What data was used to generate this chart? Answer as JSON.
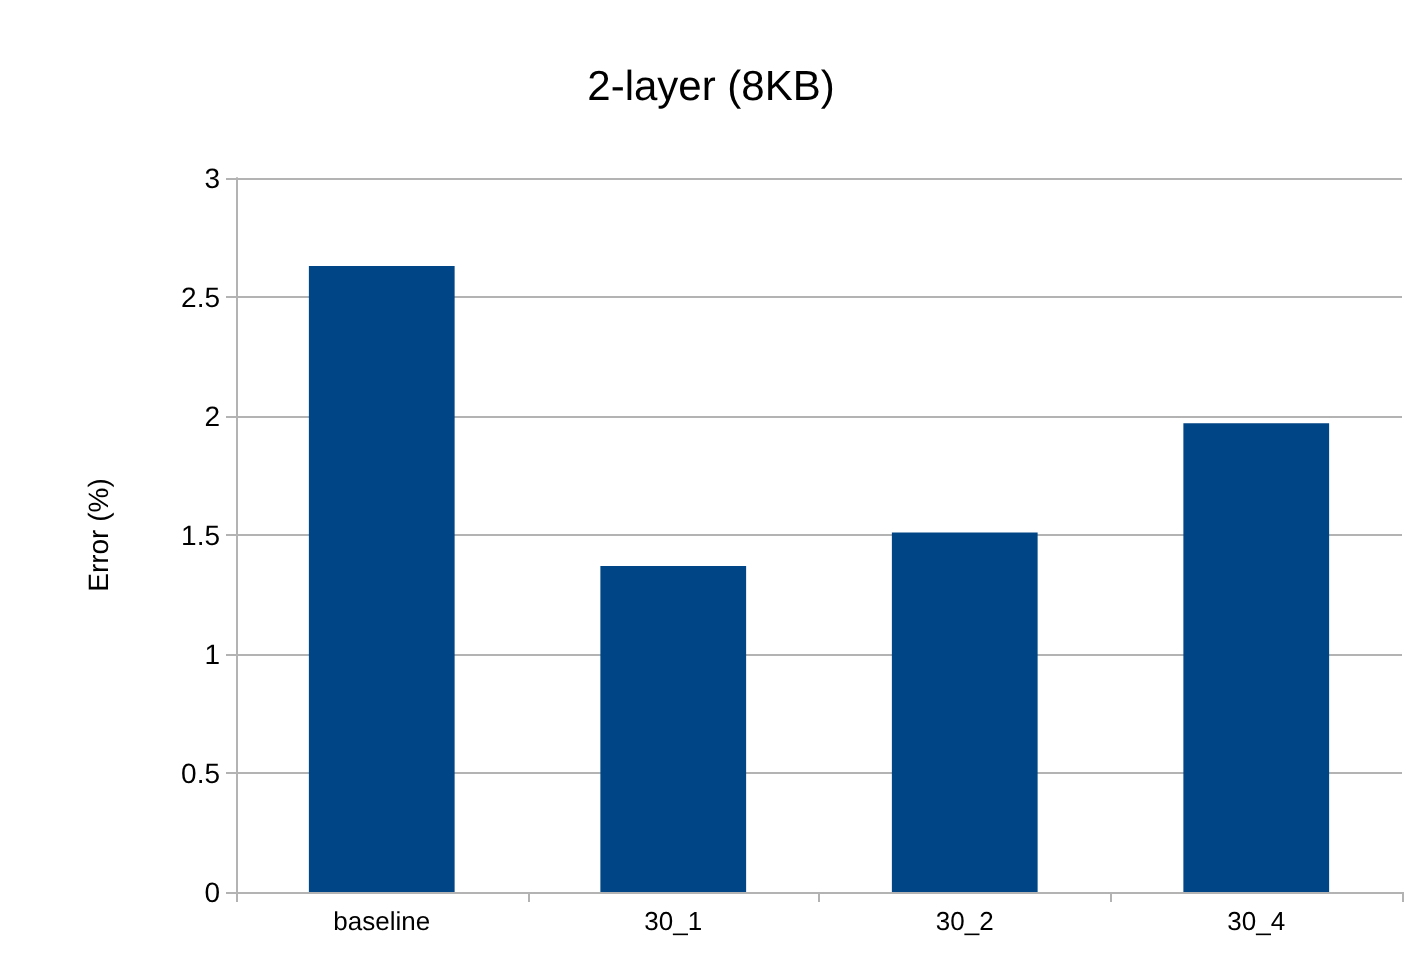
{
  "chart_data": {
    "type": "bar",
    "title": "2-layer (8KB)",
    "ylabel": "Error (%)",
    "categories": [
      "baseline",
      "30_1",
      "30_2",
      "30_4"
    ],
    "values": [
      2.63,
      1.37,
      1.51,
      1.97
    ],
    "color": "#004586",
    "ylim": [
      0,
      3
    ],
    "yticks": [
      0,
      0.5,
      1,
      1.5,
      2,
      2.5,
      3
    ],
    "grid": "y"
  }
}
